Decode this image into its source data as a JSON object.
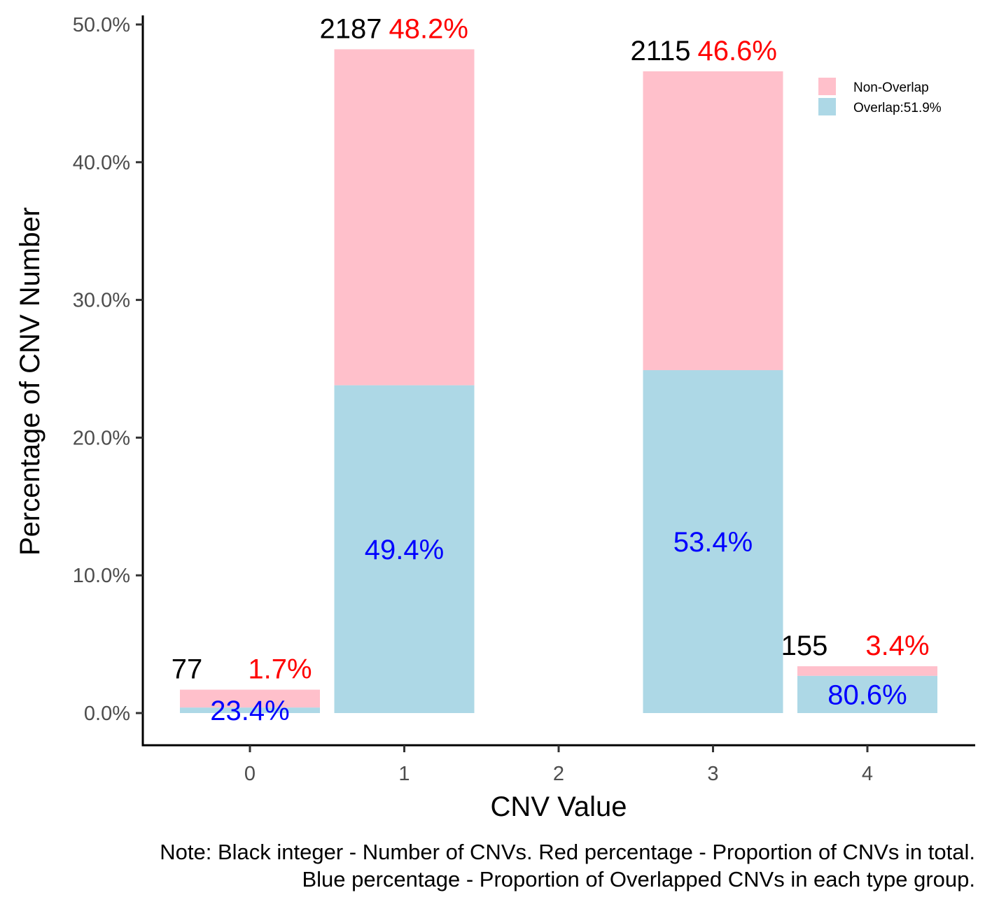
{
  "chart_data": {
    "type": "bar",
    "stacked": true,
    "xlabel": "CNV Value",
    "ylabel": "Percentage of CNV Number",
    "x_ticks": [
      "0",
      "1",
      "2",
      "3",
      "4"
    ],
    "y_ticks": [
      "0.0%",
      "10.0%",
      "20.0%",
      "30.0%",
      "40.0%",
      "50.0%"
    ],
    "ylim": [
      0,
      50
    ],
    "grid": false,
    "legend_position": "top-right",
    "legend": [
      "Non-Overlap",
      "Overlap:51.9%"
    ],
    "series_colors": {
      "non_overlap": "#FFC0CB",
      "overlap": "#ADD8E6"
    },
    "label_colors": {
      "count": "#000000",
      "total_pct": "#FF0000",
      "overlap_pct": "#0000FF"
    },
    "bars": [
      {
        "x": "0",
        "count": "77",
        "total_pct_label": "1.7%",
        "overlap_pct_label": "23.4%",
        "total": 1.7,
        "overlap": 0.4
      },
      {
        "x": "1",
        "count": "2187",
        "total_pct_label": "48.2%",
        "overlap_pct_label": "49.4%",
        "total": 48.2,
        "overlap": 23.8
      },
      {
        "x": "3",
        "count": "2115",
        "total_pct_label": "46.6%",
        "overlap_pct_label": "53.4%",
        "total": 46.6,
        "overlap": 24.9
      },
      {
        "x": "4",
        "count": "155",
        "total_pct_label": "3.4%",
        "overlap_pct_label": "80.6%",
        "total": 3.4,
        "overlap": 2.7
      }
    ]
  },
  "note": {
    "line1": "Note: Black integer - Number of CNVs. Red percentage - Proportion of CNVs in total.",
    "line2": "Blue percentage - Proportion of Overlapped CNVs in each type group."
  }
}
